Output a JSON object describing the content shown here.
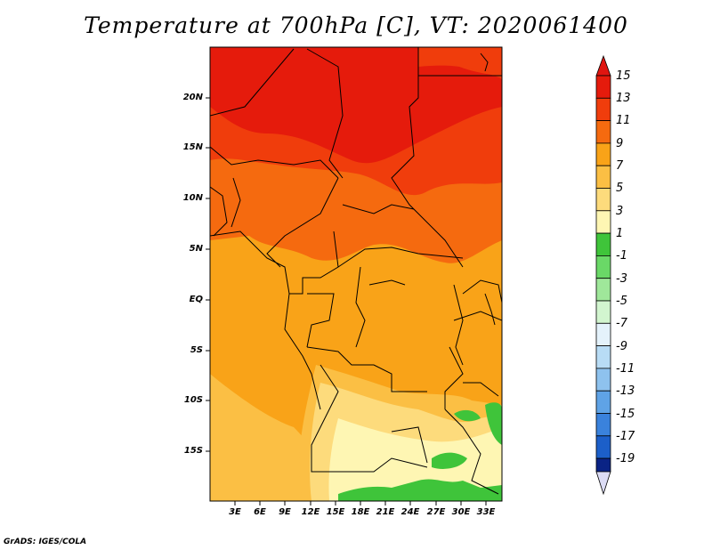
{
  "title": "Temperature at 700hPa [C], VT: 2020061400",
  "credit": "GrADS: IGES/COLA",
  "lat_labels": [
    "20N",
    "15N",
    "10N",
    "5N",
    "EQ",
    "5S",
    "10S",
    "15S"
  ],
  "lon_labels": [
    "3E",
    "6E",
    "9E",
    "12E",
    "15E",
    "18E",
    "21E",
    "24E",
    "27E",
    "30E",
    "33E"
  ],
  "colorbar": {
    "labels": [
      "15",
      "13",
      "11",
      "9",
      "7",
      "5",
      "3",
      "1",
      "-1",
      "-3",
      "-5",
      "-7",
      "-9",
      "-11",
      "-13",
      "-15",
      "-17",
      "-19"
    ],
    "colors": [
      "#e51b0c",
      "#f03d0c",
      "#f56a0f",
      "#f9a318",
      "#fbbf44",
      "#fddb7c",
      "#fef6b3",
      "#3fc43a",
      "#6ad867",
      "#9fe79a",
      "#d2f5cf",
      "#e4f2fb",
      "#b8dcf5",
      "#8ec2ee",
      "#5fa3e6",
      "#3a82dc",
      "#1c5fc9",
      "#0e3fb0",
      "#0a2385",
      "#081065"
    ],
    "end_color_top": "#e01510",
    "end_color_bottom": "#dcdcf5"
  }
}
